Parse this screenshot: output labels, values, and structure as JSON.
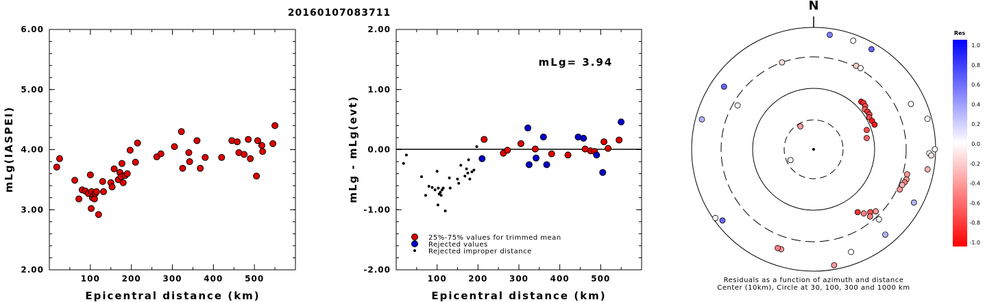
{
  "chart_data": [
    {
      "type": "scatter",
      "title": "20160107083711",
      "xlabel": "Epicentral distance (km)",
      "ylabel": "mLg(IASPEI)",
      "xlim": [
        0,
        600
      ],
      "ylim": [
        2.0,
        6.0
      ],
      "xticks": [
        "100",
        "200",
        "300",
        "400",
        "500"
      ],
      "yticks": [
        "2.00",
        "3.00",
        "4.00",
        "5.00",
        "6.00"
      ],
      "grid": false,
      "color": "#dd0000",
      "points": [
        [
          18,
          3.71
        ],
        [
          25,
          3.85
        ],
        [
          62,
          3.49
        ],
        [
          72,
          3.18
        ],
        [
          80,
          3.33
        ],
        [
          88,
          3.31
        ],
        [
          95,
          3.27
        ],
        [
          100,
          3.58
        ],
        [
          102,
          3.02
        ],
        [
          103,
          3.3
        ],
        [
          105,
          3.2
        ],
        [
          108,
          3.23
        ],
        [
          110,
          3.18
        ],
        [
          112,
          3.27
        ],
        [
          115,
          3.3
        ],
        [
          120,
          2.92
        ],
        [
          130,
          3.47
        ],
        [
          132,
          3.3
        ],
        [
          150,
          3.45
        ],
        [
          153,
          3.38
        ],
        [
          158,
          3.68
        ],
        [
          168,
          3.5
        ],
        [
          172,
          3.62
        ],
        [
          175,
          3.55
        ],
        [
          177,
          3.77
        ],
        [
          180,
          3.45
        ],
        [
          185,
          3.57
        ],
        [
          190,
          3.6
        ],
        [
          197,
          3.99
        ],
        [
          210,
          3.79
        ],
        [
          215,
          4.11
        ],
        [
          262,
          3.88
        ],
        [
          272,
          3.93
        ],
        [
          305,
          4.05
        ],
        [
          322,
          4.3
        ],
        [
          325,
          3.69
        ],
        [
          340,
          3.95
        ],
        [
          342,
          3.8
        ],
        [
          360,
          4.15
        ],
        [
          368,
          3.69
        ],
        [
          380,
          3.87
        ],
        [
          420,
          3.87
        ],
        [
          445,
          4.15
        ],
        [
          458,
          4.13
        ],
        [
          462,
          3.95
        ],
        [
          475,
          3.92
        ],
        [
          485,
          4.17
        ],
        [
          490,
          3.85
        ],
        [
          505,
          3.56
        ],
        [
          508,
          4.15
        ],
        [
          518,
          4.07
        ],
        [
          520,
          3.97
        ],
        [
          545,
          4.1
        ],
        [
          550,
          4.4
        ]
      ]
    },
    {
      "type": "scatter",
      "xlabel": "Epicentral distance (km)",
      "ylabel": "mLg - mLg(evt)",
      "xlim": [
        0,
        600
      ],
      "ylim": [
        -2.0,
        2.0
      ],
      "xticks": [
        "100",
        "200",
        "300",
        "400",
        "500"
      ],
      "yticks": [
        "-2.00",
        "-1.00",
        "0.00",
        "1.00",
        "2.00"
      ],
      "annotation": "mLg= 3.94",
      "grid": false,
      "reference_line_y": 0,
      "legend_placement": "bottom-left",
      "series": [
        {
          "name": "25%-75% values for trimmed mean",
          "color": "#dd0000",
          "marker": "large",
          "points": [
            [
              215,
              0.17
            ],
            [
              262,
              -0.06
            ],
            [
              272,
              -0.01
            ],
            [
              305,
              0.1
            ],
            [
              340,
              0.01
            ],
            [
              380,
              -0.07
            ],
            [
              420,
              -0.09
            ],
            [
              462,
              0.01
            ],
            [
              475,
              -0.02
            ],
            [
              485,
              -0.03
            ],
            [
              508,
              0.13
            ],
            [
              518,
              0.02
            ],
            [
              545,
              0.16
            ]
          ]
        },
        {
          "name": "Rejected values",
          "color": "#0000cc",
          "marker": "large",
          "points": [
            [
              210,
              -0.15
            ],
            [
              322,
              0.36
            ],
            [
              325,
              -0.25
            ],
            [
              342,
              -0.14
            ],
            [
              360,
              0.21
            ],
            [
              368,
              -0.25
            ],
            [
              445,
              0.21
            ],
            [
              458,
              0.19
            ],
            [
              490,
              -0.09
            ],
            [
              505,
              -0.38
            ],
            [
              550,
              0.46
            ]
          ]
        },
        {
          "name": "Rejected improper distance",
          "color": "#000000",
          "marker": "small",
          "points": [
            [
              18,
              -0.23
            ],
            [
              25,
              -0.09
            ],
            [
              62,
              -0.45
            ],
            [
              72,
              -0.76
            ],
            [
              80,
              -0.61
            ],
            [
              88,
              -0.63
            ],
            [
              95,
              -0.67
            ],
            [
              100,
              -0.36
            ],
            [
              102,
              -0.92
            ],
            [
              103,
              -0.64
            ],
            [
              105,
              -0.74
            ],
            [
              108,
              -0.71
            ],
            [
              110,
              -0.76
            ],
            [
              112,
              -0.67
            ],
            [
              115,
              -0.64
            ],
            [
              120,
              -1.02
            ],
            [
              130,
              -0.47
            ],
            [
              132,
              -0.64
            ],
            [
              150,
              -0.49
            ],
            [
              153,
              -0.56
            ],
            [
              158,
              -0.26
            ],
            [
              168,
              -0.44
            ],
            [
              172,
              -0.32
            ],
            [
              175,
              -0.39
            ],
            [
              177,
              -0.17
            ],
            [
              180,
              -0.49
            ],
            [
              185,
              -0.37
            ],
            [
              190,
              -0.34
            ],
            [
              197,
              0.05
            ]
          ]
        }
      ]
    },
    {
      "type": "polar-scatter",
      "orientation_label": "N",
      "caption_line1": "Residuals as a function of azimuth and distance",
      "caption_line2": "Center (10km), Circle at 30, 100, 300 and 1000 km",
      "rings_km": [
        30,
        100,
        300,
        1000
      ],
      "colorbar": {
        "title": "Res",
        "ticks": [
          "1.0",
          "0.8",
          "0.6",
          "0.4",
          "0.2",
          "0.0",
          "-0.2",
          "-0.4",
          "-0.6",
          "-0.8",
          "-1.0"
        ],
        "range": [
          -1.0,
          1.0
        ],
        "color_positive": "#0000ff",
        "color_zero": "#ffffff",
        "color_negative": "#ff0000"
      },
      "stations": [
        {
          "azimuth_deg": 0,
          "distance_km": 0,
          "residual": 0,
          "marker": "center"
        },
        {
          "azimuth_deg": 330,
          "distance_km": 27,
          "residual": -0.4
        },
        {
          "azimuth_deg": 245,
          "distance_km": 26,
          "residual": -0.05
        },
        {
          "azimuth_deg": 8,
          "distance_km": 850,
          "residual": 0.5
        },
        {
          "azimuth_deg": 20,
          "distance_km": 850,
          "residual": 0.0
        },
        {
          "azimuth_deg": 30,
          "distance_km": 850,
          "residual": 0.6
        },
        {
          "azimuth_deg": 340,
          "distance_km": 300,
          "residual": -0.15
        },
        {
          "azimuth_deg": 300,
          "distance_km": 270,
          "residual": 0.0
        },
        {
          "azimuth_deg": 305,
          "distance_km": 700,
          "residual": 0.6
        },
        {
          "azimuth_deg": 285,
          "distance_km": 850,
          "residual": 0.3
        },
        {
          "azimuth_deg": 232,
          "distance_km": 850,
          "residual": 0.6
        },
        {
          "azimuth_deg": 235,
          "distance_km": 950,
          "residual": 0.0
        },
        {
          "azimuth_deg": 27,
          "distance_km": 330,
          "residual": -0.2
        },
        {
          "azimuth_deg": 30,
          "distance_km": 330,
          "residual": 0.0
        },
        {
          "azimuth_deg": 45,
          "distance_km": 140,
          "residual": -0.9
        },
        {
          "azimuth_deg": 47,
          "distance_km": 145,
          "residual": -0.8
        },
        {
          "azimuth_deg": 50,
          "distance_km": 140,
          "residual": -0.7
        },
        {
          "azimuth_deg": 52,
          "distance_km": 125,
          "residual": -0.6
        },
        {
          "azimuth_deg": 55,
          "distance_km": 130,
          "residual": -0.8
        },
        {
          "azimuth_deg": 58,
          "distance_km": 130,
          "residual": -0.7
        },
        {
          "azimuth_deg": 60,
          "distance_km": 120,
          "residual": -0.7
        },
        {
          "azimuth_deg": 64,
          "distance_km": 125,
          "residual": -0.9
        },
        {
          "azimuth_deg": 68,
          "distance_km": 130,
          "residual": -0.9
        },
        {
          "azimuth_deg": 70,
          "distance_km": 90,
          "residual": -0.7
        },
        {
          "azimuth_deg": 78,
          "distance_km": 85,
          "residual": -0.6
        },
        {
          "azimuth_deg": 65,
          "distance_km": 650,
          "residual": 0.0
        },
        {
          "azimuth_deg": 75,
          "distance_km": 900,
          "residual": 0.0
        },
        {
          "azimuth_deg": 90,
          "distance_km": 980,
          "residual": 0.0
        },
        {
          "azimuth_deg": 92,
          "distance_km": 850,
          "residual": 0.0
        },
        {
          "azimuth_deg": 93,
          "distance_km": 900,
          "residual": -0.1
        },
        {
          "azimuth_deg": 100,
          "distance_km": 850,
          "residual": -0.3
        },
        {
          "azimuth_deg": 105,
          "distance_km": 400,
          "residual": -0.4
        },
        {
          "azimuth_deg": 108,
          "distance_km": 420,
          "residual": -0.4
        },
        {
          "azimuth_deg": 110,
          "distance_km": 400,
          "residual": -0.5
        },
        {
          "azimuth_deg": 112,
          "distance_km": 370,
          "residual": -0.3
        },
        {
          "azimuth_deg": 115,
          "distance_km": 360,
          "residual": -0.4
        },
        {
          "azimuth_deg": 118,
          "distance_km": 800,
          "residual": 0.3
        },
        {
          "azimuth_deg": 135,
          "distance_km": 270,
          "residual": -0.4
        },
        {
          "azimuth_deg": 138,
          "distance_km": 250,
          "residual": -0.7
        },
        {
          "azimuth_deg": 140,
          "distance_km": 270,
          "residual": -0.5
        },
        {
          "azimuth_deg": 142,
          "distance_km": 230,
          "residual": -0.5
        },
        {
          "azimuth_deg": 145,
          "distance_km": 200,
          "residual": -0.8
        },
        {
          "azimuth_deg": 137,
          "distance_km": 380,
          "residual": 0.0
        },
        {
          "azimuth_deg": 140,
          "distance_km": 750,
          "residual": 0.3
        },
        {
          "azimuth_deg": 160,
          "distance_km": 700,
          "residual": 0.0
        },
        {
          "azimuth_deg": 170,
          "distance_km": 900,
          "residual": -0.4
        },
        {
          "azimuth_deg": 198,
          "distance_km": 600,
          "residual": -0.4
        },
        {
          "azimuth_deg": 200,
          "distance_km": 600,
          "residual": -0.5
        }
      ]
    }
  ]
}
